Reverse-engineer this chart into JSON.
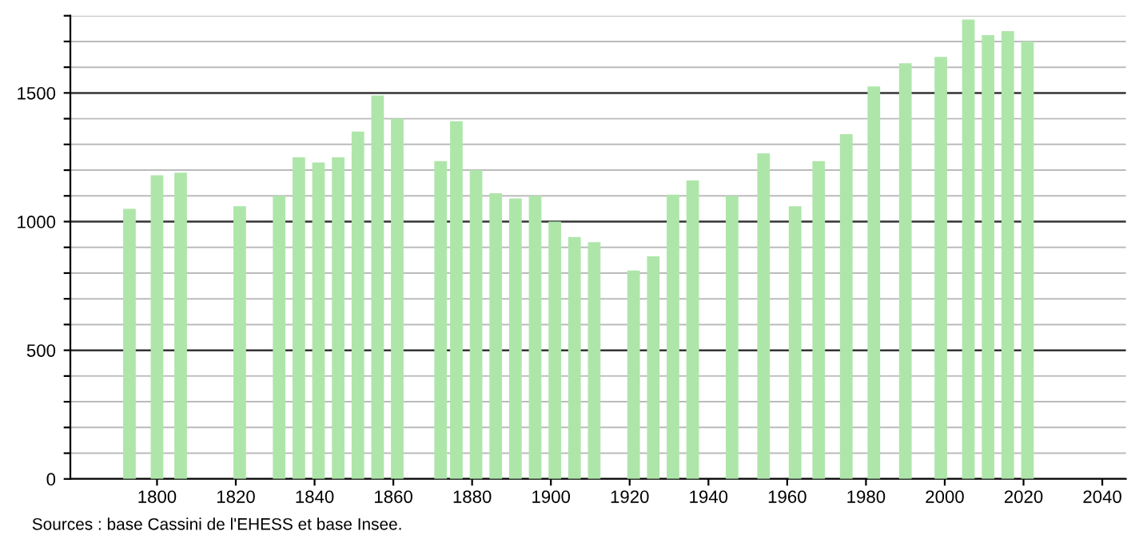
{
  "chart_data": {
    "type": "bar",
    "x": [
      1793,
      1800,
      1806,
      1821,
      1831,
      1836,
      1841,
      1846,
      1851,
      1856,
      1861,
      1872,
      1876,
      1881,
      1886,
      1891,
      1896,
      1901,
      1906,
      1911,
      1921,
      1926,
      1931,
      1936,
      1946,
      1954,
      1962,
      1968,
      1975,
      1982,
      1990,
      1999,
      2006,
      2011,
      2016,
      2021
    ],
    "values": [
      1050,
      1180,
      1190,
      1060,
      1100,
      1250,
      1230,
      1250,
      1350,
      1490,
      1400,
      1235,
      1390,
      1200,
      1110,
      1090,
      1100,
      1000,
      940,
      920,
      810,
      865,
      1105,
      1160,
      1100,
      1265,
      1060,
      1235,
      1340,
      1525,
      1615,
      1640,
      1785,
      1725,
      1740,
      1700
    ],
    "color": "#aee6aa",
    "xlim": [
      1778,
      2046
    ],
    "xticks": [
      1800,
      1820,
      1840,
      1860,
      1880,
      1900,
      1920,
      1940,
      1960,
      1980,
      2000,
      2020,
      2040
    ],
    "ylim": [
      0,
      1800
    ],
    "yticks": [
      0,
      {
        "value": 100,
        "label": null
      },
      {
        "value": 200,
        "label": null
      },
      {
        "value": 300,
        "label": null
      },
      {
        "value": 400,
        "label": null
      },
      500,
      {
        "value": 600,
        "label": null
      },
      {
        "value": 700,
        "label": null
      },
      {
        "value": 800,
        "label": null
      },
      {
        "value": 900,
        "label": null
      },
      1000,
      {
        "value": 1100,
        "label": null
      },
      {
        "value": 1200,
        "label": null
      },
      {
        "value": 1300,
        "label": null
      },
      {
        "value": 1400,
        "label": null
      },
      1500,
      {
        "value": 1600,
        "label": null
      },
      {
        "value": 1700,
        "label": null
      },
      {
        "value": 1800,
        "label": null
      }
    ],
    "grid": "y",
    "annotations": [
      "Sources : base Cassini de l'EHESS et base Insee."
    ]
  }
}
